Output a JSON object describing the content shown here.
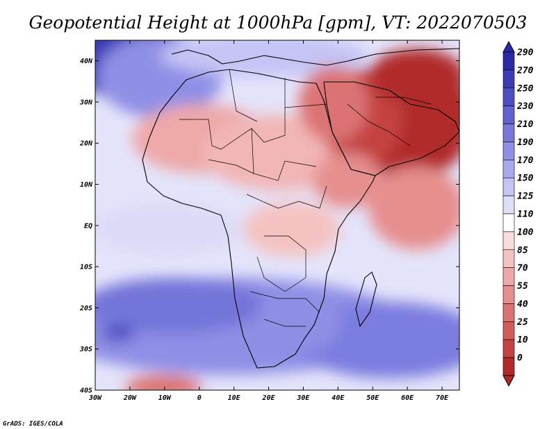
{
  "title": "Geopotential Height at 1000hPa [gpm], VT: 2022070503",
  "credit": "GrADS: IGES/COLA",
  "map": {
    "lon_range": [
      -30,
      75
    ],
    "lat_range": [
      -40,
      45
    ],
    "lat_ticks": [
      "40N",
      "30N",
      "20N",
      "10N",
      "EQ",
      "10S",
      "20S",
      "30S",
      "40S"
    ],
    "lon_ticks": [
      "30W",
      "20W",
      "10W",
      "0",
      "10E",
      "20E",
      "30E",
      "40E",
      "50E",
      "60E",
      "70E"
    ],
    "ocean_color": "#ffffff",
    "coastline_color": "#000000"
  },
  "colorbar": {
    "labels": [
      "290",
      "270",
      "250",
      "230",
      "210",
      "190",
      "170",
      "150",
      "125",
      "110",
      "100",
      "85",
      "70",
      "55",
      "40",
      "25",
      "10",
      "0"
    ],
    "colors": [
      "#2a2aa6",
      "#3b3bb5",
      "#4f4fc4",
      "#6161d1",
      "#7777dc",
      "#8f8fe6",
      "#a8a8ee",
      "#c4c4f5",
      "#dddff9",
      "#ffffff",
      "#f9dddd",
      "#f5c2c2",
      "#eea8a8",
      "#e68f8f",
      "#dc7373",
      "#d15c5c",
      "#c44242",
      "#b02a2a"
    ]
  },
  "chart_data": {
    "type": "heatmap",
    "title": "Geopotential Height at 1000hPa [gpm], VT: 2022070503",
    "variable": "Geopotential Height at 1000hPa",
    "units": "gpm",
    "valid_time": "2022070503",
    "x_range": [
      -30,
      75
    ],
    "y_range": [
      -40,
      45
    ],
    "levels": [
      0,
      10,
      25,
      40,
      55,
      70,
      85,
      100,
      110,
      125,
      150,
      170,
      190,
      210,
      230,
      250,
      270,
      290
    ],
    "regions": [
      {
        "name": "Arabian Peninsula / Persian Gulf",
        "approx_gpm": 20
      },
      {
        "name": "Sahara (Mali/Niger/Chad)",
        "approx_gpm": 75
      },
      {
        "name": "Western Indian Ocean",
        "approx_gpm": 85
      },
      {
        "name": "Southern Africa interior",
        "approx_gpm": 185
      },
      {
        "name": "South Atlantic",
        "approx_gpm": 200
      },
      {
        "name": "North-east Atlantic (Azores high)",
        "approx_gpm": 260
      },
      {
        "name": "South Atlantic near 10W 40S",
        "approx_gpm": 60
      }
    ]
  }
}
